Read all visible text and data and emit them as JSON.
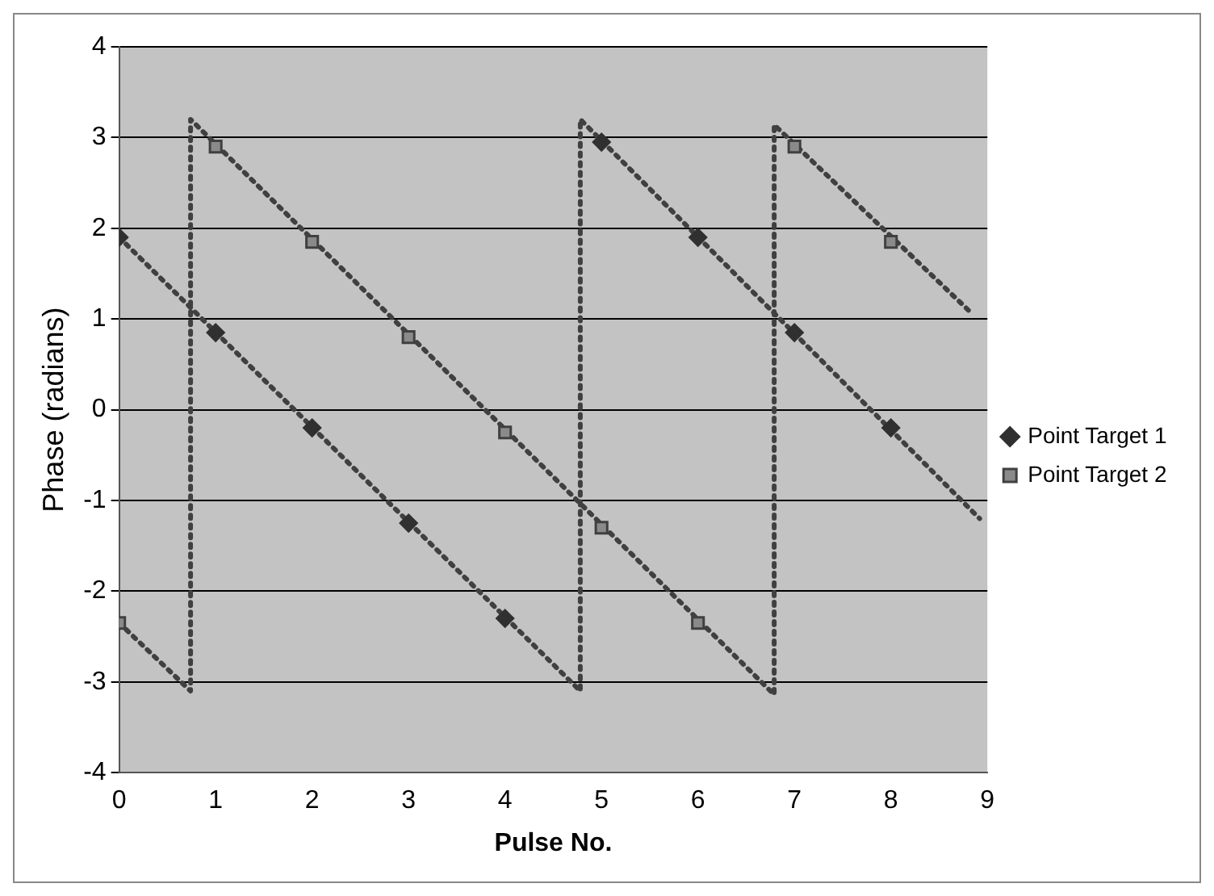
{
  "chart_data": {
    "type": "scatter",
    "xlabel": "Pulse No.",
    "ylabel": "Phase (radians)",
    "xlim": [
      0,
      9
    ],
    "xticks": [
      0,
      1,
      2,
      3,
      4,
      5,
      6,
      7,
      8,
      9
    ],
    "ylim": [
      -4,
      4
    ],
    "yticks": [
      -4,
      -3,
      -2,
      -1,
      0,
      1,
      2,
      3,
      4
    ],
    "grid": "y",
    "legend": "right",
    "x": [
      0,
      1,
      2,
      3,
      4,
      5,
      6,
      7,
      8
    ],
    "series": [
      {
        "name": "Point Target 1",
        "color": "#303030",
        "marker": "diamond",
        "values": [
          1.9,
          0.85,
          -0.2,
          -1.25,
          -2.3,
          2.95,
          1.9,
          0.85,
          -0.2
        ]
      },
      {
        "name": "Point Target 2",
        "color": "#404040",
        "marker": "square",
        "values": [
          -2.35,
          2.9,
          1.85,
          0.8,
          -0.25,
          -1.3,
          -2.35,
          2.9,
          1.85
        ]
      },
      {
        "type": "line",
        "color": "#404040",
        "line_style": "dotted",
        "marker": "none",
        "x": [
          0,
          4.78,
          4.78,
          8.92
        ],
        "values": [
          1.9,
          -3.1,
          3.2,
          -1.2
        ]
      },
      {
        "type": "line",
        "color": "#404040",
        "line_style": "dotted",
        "marker": "none",
        "x": [
          0,
          0.74,
          0.74,
          6.79,
          6.79,
          8.85
        ],
        "values": [
          -2.35,
          -3.1,
          3.2,
          -3.14,
          3.14,
          1.05
        ]
      }
    ]
  }
}
